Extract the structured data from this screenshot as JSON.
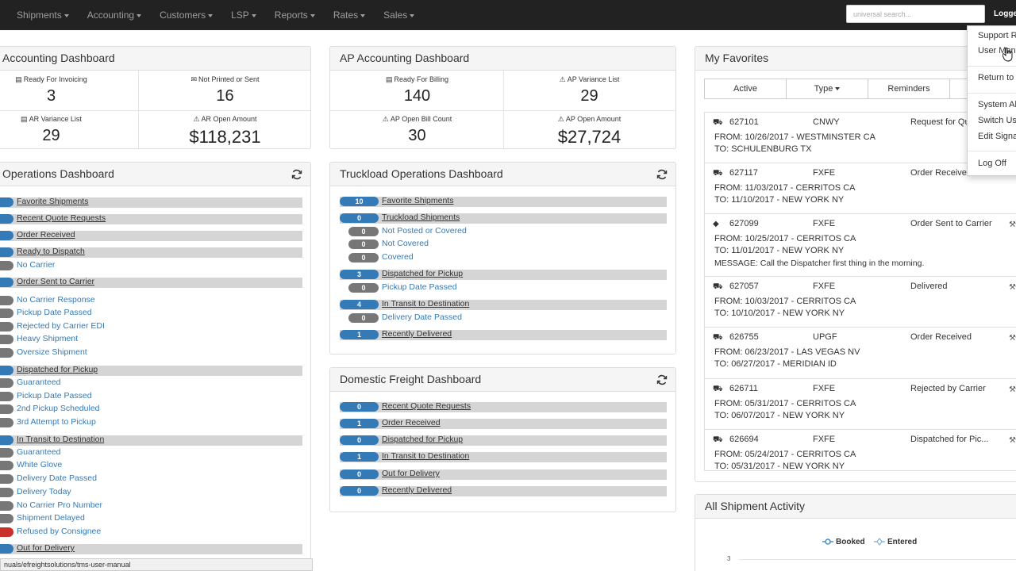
{
  "nav": {
    "items": [
      "Shipments",
      "Accounting",
      "Customers",
      "LSP",
      "Reports",
      "Rates",
      "Sales"
    ],
    "search_placeholder": "universal search...",
    "logged_label": "Logged"
  },
  "ar_panel": {
    "title": "Accounting Dashboard",
    "stats": [
      {
        "label": "Ready For Invoicing",
        "value": "3",
        "icon": "document-icon"
      },
      {
        "label": "Not Printed or Sent",
        "value": "16",
        "icon": "envelope-icon"
      },
      {
        "label": "AR Variance List",
        "value": "29",
        "icon": "document-icon"
      },
      {
        "label": "AR Open Amount",
        "value": "$118,231",
        "icon": "warning-icon"
      }
    ]
  },
  "ap_panel": {
    "title": "AP Accounting Dashboard",
    "stats": [
      {
        "label": "Ready For Billing",
        "value": "140",
        "icon": "document-icon"
      },
      {
        "label": "AP Variance List",
        "value": "29",
        "icon": "warning-icon"
      },
      {
        "label": "AP Open Bill Count",
        "value": "30",
        "icon": "warning-icon"
      },
      {
        "label": "AP Open Amount",
        "value": "$27,724",
        "icon": "warning-icon"
      }
    ]
  },
  "ops_panel": {
    "title": "Operations Dashboard",
    "rows": [
      {
        "label": "Favorite Shipments",
        "header": true,
        "color": "blue"
      },
      {
        "label": "Recent Quote Requests",
        "header": true,
        "color": "blue"
      },
      {
        "label": "Order Received",
        "header": true,
        "color": "blue"
      },
      {
        "label": "Ready to Dispatch",
        "header": true,
        "color": "blue"
      },
      {
        "label": "No Carrier",
        "header": false,
        "color": "gray"
      },
      {
        "label": "Order Sent to Carrier",
        "header": true,
        "color": "blue"
      },
      {
        "label": "No Carrier Response",
        "header": false,
        "color": "gray"
      },
      {
        "label": "Pickup Date Passed",
        "header": false,
        "color": "gray"
      },
      {
        "label": "Rejected by Carrier EDI",
        "header": false,
        "color": "gray"
      },
      {
        "label": "Heavy Shipment",
        "header": false,
        "color": "gray"
      },
      {
        "label": "Oversize Shipment",
        "header": false,
        "color": "gray"
      },
      {
        "label": "Dispatched for Pickup",
        "header": true,
        "color": "blue"
      },
      {
        "label": "Guaranteed",
        "header": false,
        "color": "gray"
      },
      {
        "label": "Pickup Date Passed",
        "header": false,
        "color": "gray"
      },
      {
        "label": "2nd Pickup Scheduled",
        "header": false,
        "color": "gray"
      },
      {
        "label": "3rd Attempt to Pickup",
        "header": false,
        "color": "gray"
      },
      {
        "label": "In Transit to Destination",
        "header": true,
        "color": "blue"
      },
      {
        "label": "Guaranteed",
        "header": false,
        "color": "gray"
      },
      {
        "label": "White Glove",
        "header": false,
        "color": "gray"
      },
      {
        "label": "Delivery Date Passed",
        "header": false,
        "color": "gray"
      },
      {
        "label": "Delivery Today",
        "header": false,
        "color": "gray"
      },
      {
        "label": "No Carrier Pro Number",
        "header": false,
        "color": "gray"
      },
      {
        "label": "Shipment Delayed",
        "header": false,
        "color": "gray"
      },
      {
        "label": "Refused by Consignee",
        "header": false,
        "color": "red"
      },
      {
        "label": "Out for Delivery",
        "header": true,
        "color": "blue"
      }
    ]
  },
  "tl_panel": {
    "title": "Truckload Operations Dashboard",
    "rows": [
      {
        "count": "10",
        "label": "Favorite Shipments",
        "header": true
      },
      {
        "count": "0",
        "label": "Truckload Shipments",
        "header": true
      },
      {
        "count": "0",
        "label": "Not Posted or Covered",
        "header": false
      },
      {
        "count": "0",
        "label": "Not Covered",
        "header": false
      },
      {
        "count": "0",
        "label": "Covered",
        "header": false
      },
      {
        "count": "3",
        "label": "Dispatched for Pickup",
        "header": true
      },
      {
        "count": "0",
        "label": "Pickup Date Passed",
        "header": false
      },
      {
        "count": "4",
        "label": "In Transit to Destination",
        "header": true
      },
      {
        "count": "0",
        "label": "Delivery Date Passed",
        "header": false
      },
      {
        "count": "1",
        "label": "Recently Delivered",
        "header": true
      }
    ]
  },
  "dom_panel": {
    "title": "Domestic Freight Dashboard",
    "rows": [
      {
        "count": "0",
        "label": "Recent Quote Requests"
      },
      {
        "count": "1",
        "label": "Order Received"
      },
      {
        "count": "0",
        "label": "Dispatched for Pickup"
      },
      {
        "count": "1",
        "label": "In Transit to Destination"
      },
      {
        "count": "0",
        "label": "Out for Delivery"
      },
      {
        "count": "0",
        "label": "Recently Delivered"
      }
    ]
  },
  "favorites": {
    "title": "My Favorites",
    "tabs": [
      "Active",
      "Type",
      "Reminders"
    ],
    "items": [
      {
        "id": "627101",
        "carrier": "CNWY",
        "status": "Request for Qu",
        "from": "FROM:  10/26/2017 -  WESTMINSTER  CA",
        "to": "TO:  SCHULENBURG  TX",
        "message": "",
        "icon": "truck-icon"
      },
      {
        "id": "627117",
        "carrier": "FXFE",
        "status": "Order Received",
        "from": "FROM:  11/03/2017 -  CERRITOS  CA",
        "to": "TO:  11/10/2017 -  NEW YORK  NY",
        "message": "",
        "icon": "truck-icon"
      },
      {
        "id": "627099",
        "carrier": "FXFE",
        "status": "Order Sent to Carrier",
        "from": "FROM:  10/25/2017 -  CERRITOS  CA",
        "to": "TO:  11/01/2017 -  NEW YORK  NY",
        "message": "MESSAGE: Call the Dispatcher first thing in the morning.",
        "icon": "tag-icon"
      },
      {
        "id": "627057",
        "carrier": "FXFE",
        "status": "Delivered",
        "from": "FROM:  10/03/2017 -  CERRITOS  CA",
        "to": "TO:  10/10/2017 -  NEW YORK  NY",
        "message": "",
        "icon": "truck-icon"
      },
      {
        "id": "626755",
        "carrier": "UPGF",
        "status": "Order Received",
        "from": "FROM:  06/23/2017 -  LAS VEGAS  NV",
        "to": "TO:  06/27/2017 -  MERIDIAN  ID",
        "message": "",
        "icon": "truck-icon"
      },
      {
        "id": "626711",
        "carrier": "FXFE",
        "status": "Rejected by Carrier",
        "from": "FROM:  05/31/2017 -  CERRITOS  CA",
        "to": "TO:  06/07/2017 -  NEW YORK  NY",
        "message": "",
        "icon": "truck-icon"
      },
      {
        "id": "626694",
        "carrier": "FXFE",
        "status": "Dispatched for Pic...",
        "from": "FROM:  05/24/2017 -  CERRITOS  CA",
        "to": "TO:  05/31/2017 -  NEW YORK  NY",
        "message": "",
        "icon": "truck-icon"
      }
    ]
  },
  "activity": {
    "title": "All Shipment Activity",
    "legend": [
      "Booked",
      "Entered"
    ],
    "y_tick": "3"
  },
  "user_menu": {
    "items": [
      "Support R",
      "User Manu",
      "Return to",
      "System Al",
      "Switch Us",
      "Edit Signa",
      "Log Off"
    ]
  },
  "status_url": "nuals/efreightsolutions/tms-user-manual",
  "colors": {
    "blue": "#337ab7",
    "gray": "#777777",
    "red": "#c9302c",
    "nav": "#222222"
  }
}
